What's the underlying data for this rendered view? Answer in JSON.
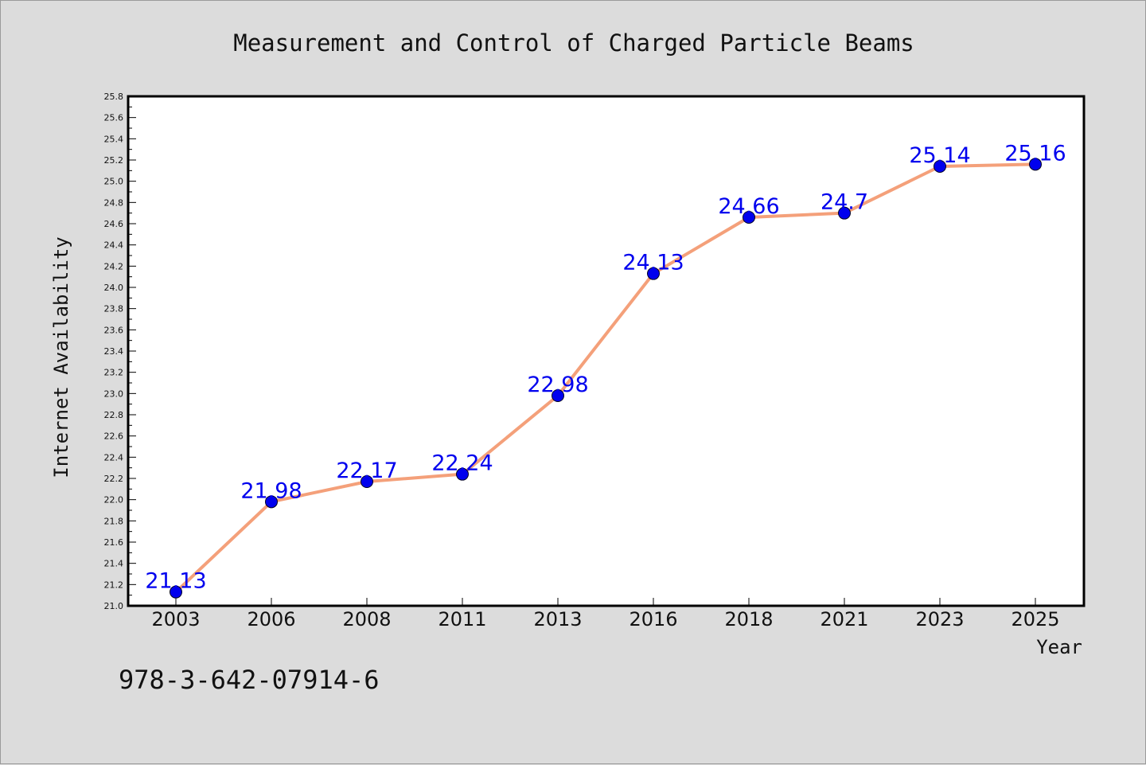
{
  "chart_data": {
    "type": "line",
    "title": "Measurement and Control of Charged Particle Beams",
    "xlabel": "Year",
    "ylabel": "Internet Availability",
    "categories": [
      "2003",
      "2006",
      "2008",
      "2011",
      "2013",
      "2016",
      "2018",
      "2021",
      "2023",
      "2025"
    ],
    "series": [
      {
        "values": [
          21.13,
          21.98,
          22.17,
          22.24,
          22.98,
          24.13,
          24.66,
          24.7,
          25.14,
          25.16
        ],
        "labels": [
          "21.13",
          "21.98",
          "22.17",
          "22.24",
          "22.98",
          "24.13",
          "24.66",
          "24.7",
          "25.14",
          "25.16"
        ]
      }
    ],
    "ylim": [
      21.0,
      25.8
    ],
    "yticks": [
      "21.0",
      "21.2",
      "21.4",
      "21.6",
      "21.8",
      "22.0",
      "22.2",
      "22.4",
      "22.6",
      "22.8",
      "23.0",
      "23.2",
      "23.4",
      "23.6",
      "23.8",
      "24.0",
      "24.2",
      "24.4",
      "24.6",
      "24.8",
      "25.0",
      "25.2",
      "25.4",
      "25.6",
      "25.8"
    ],
    "grid": false,
    "colors": {
      "line": "#f4a07a",
      "marker": "#0000ee",
      "data_label": "#0000ee",
      "plot_background": "#ffffff",
      "figure_background": "#dcdcdc"
    }
  },
  "footnote": "978-3-642-07914-6"
}
